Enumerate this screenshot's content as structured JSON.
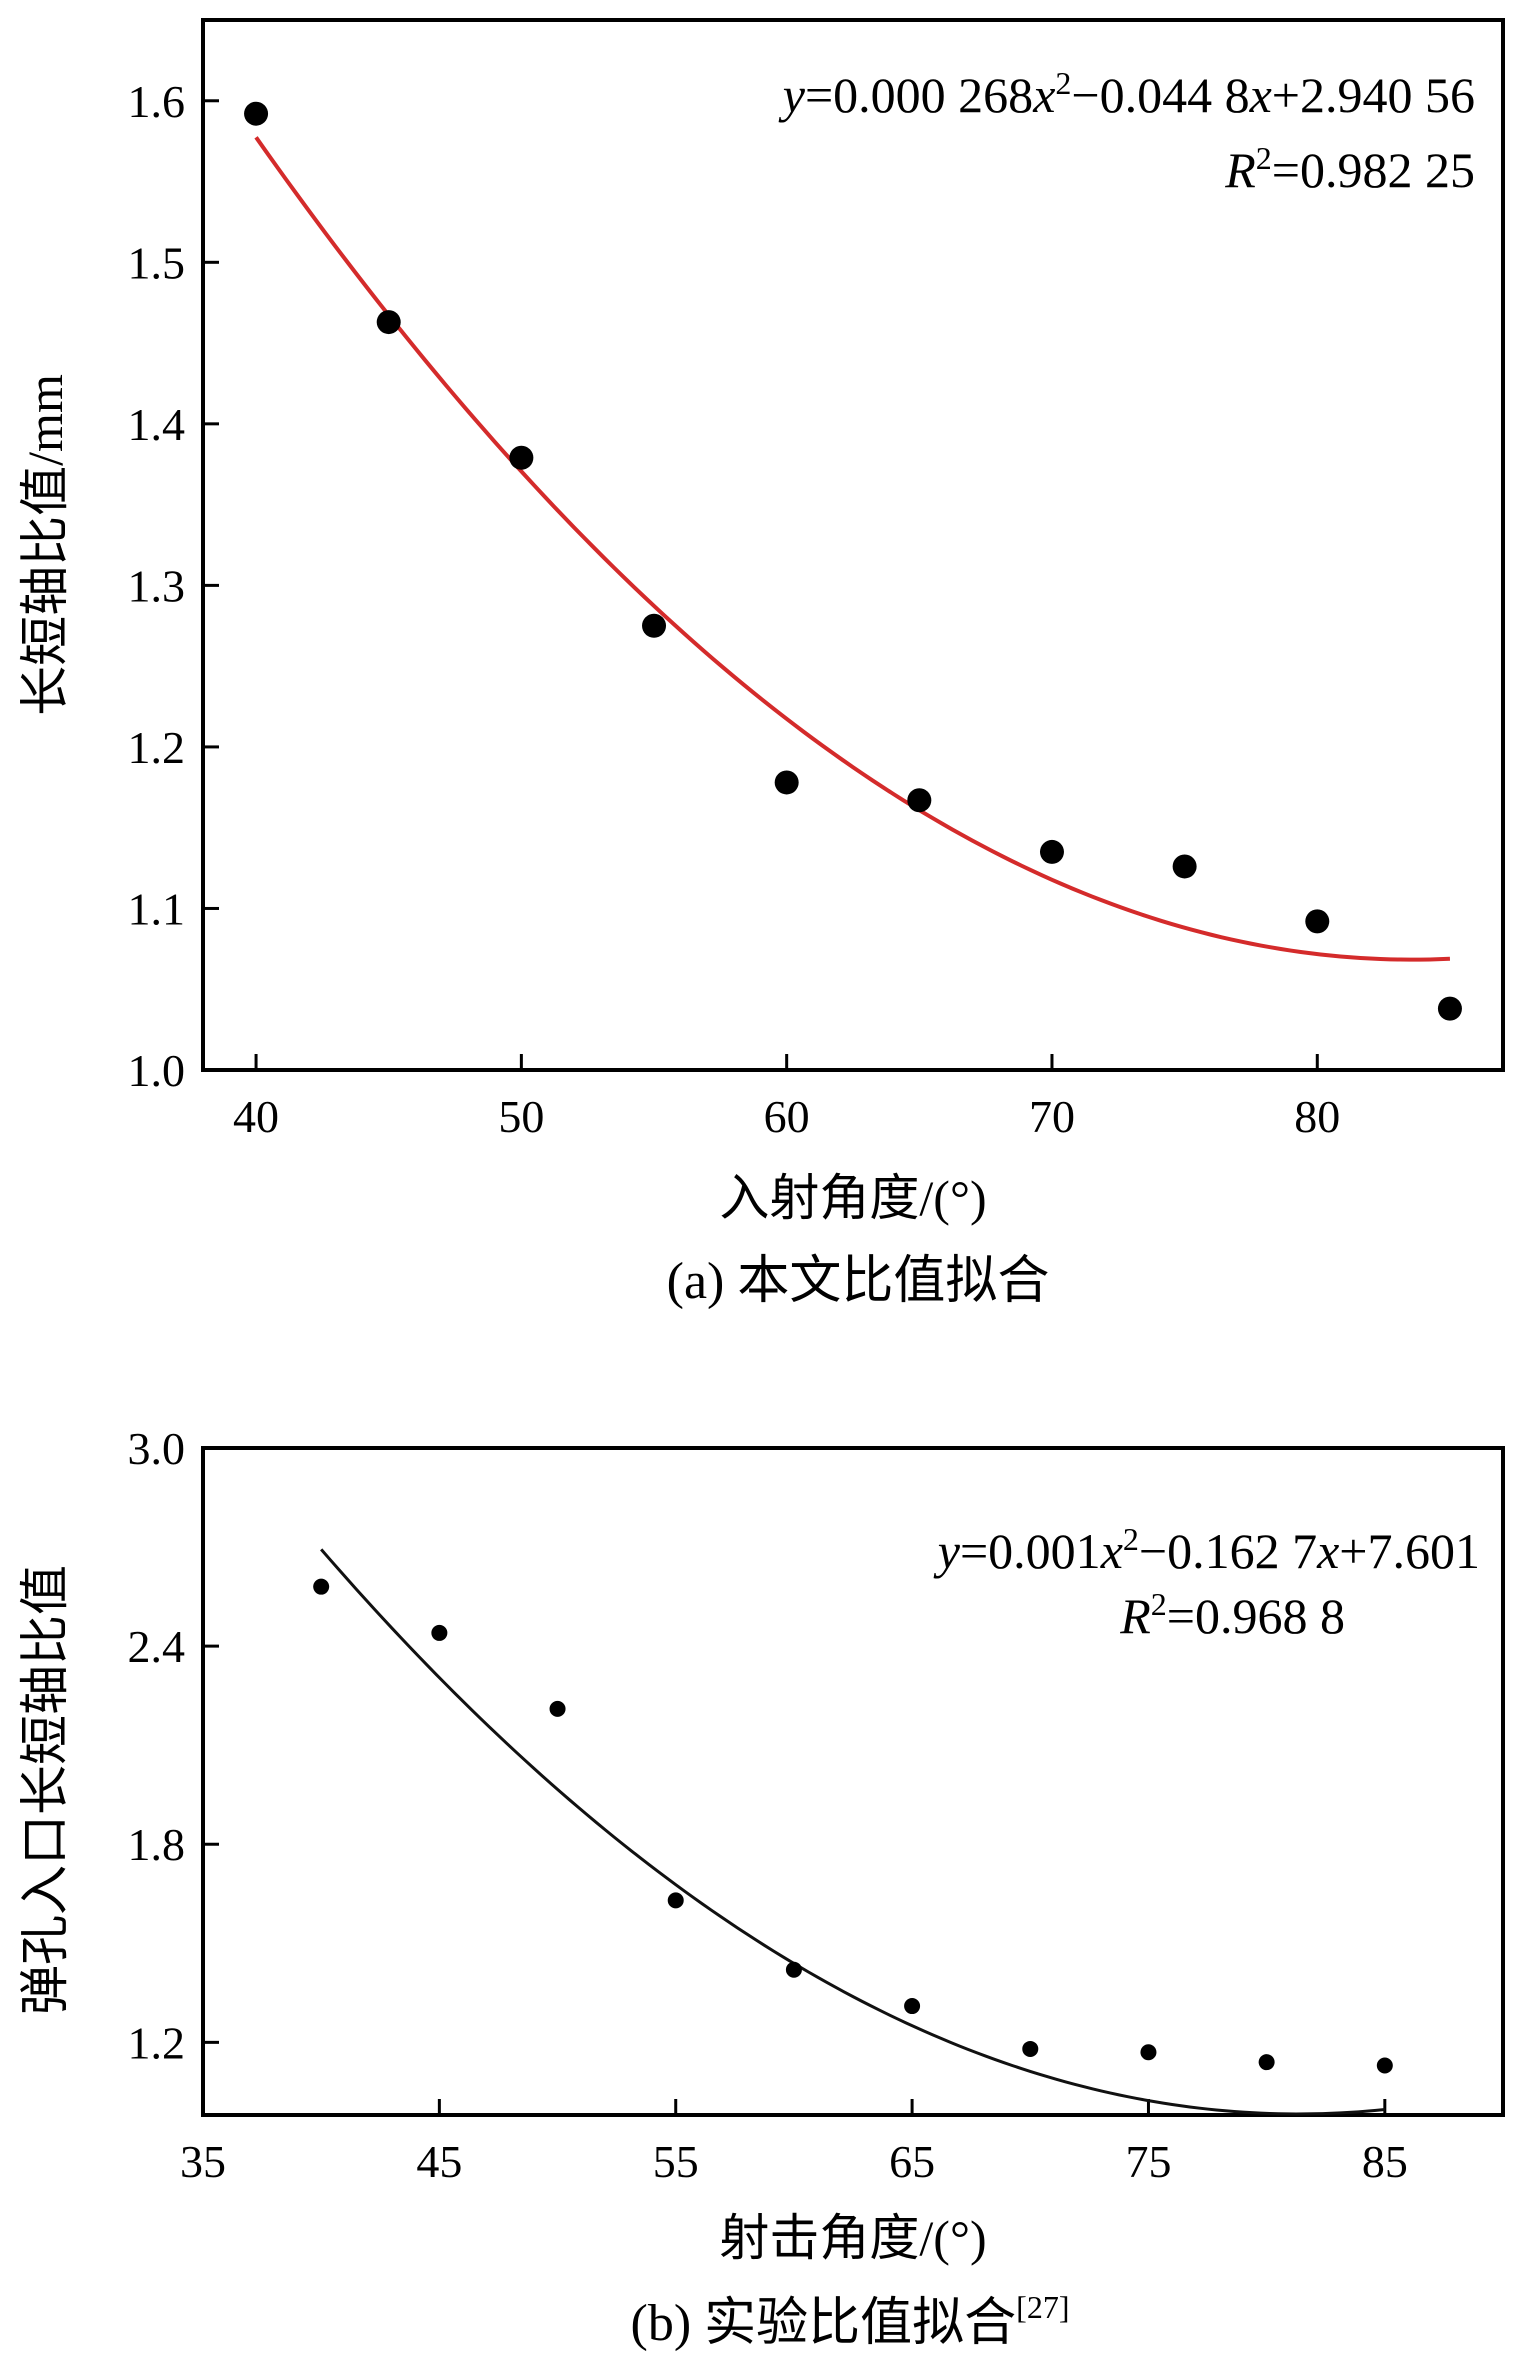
{
  "chart_data": [
    {
      "type": "scatter",
      "title": "",
      "xlabel": "入射角度/(°)",
      "ylabel": "长短轴比值/mm",
      "caption": "(a) 本文比值拟合",
      "xlim": [
        38,
        87
      ],
      "ylim": [
        1.0,
        1.65
      ],
      "xticks": [
        40,
        50,
        60,
        70,
        80
      ],
      "yticks": [
        1.0,
        1.1,
        1.2,
        1.3,
        1.4,
        1.5,
        1.6
      ],
      "ytick_labels": [
        "1.0",
        "1.1",
        "1.2",
        "1.3",
        "1.4",
        "1.5",
        "1.6"
      ],
      "x": [
        40,
        45,
        50,
        55,
        60,
        65,
        70,
        75,
        80,
        85
      ],
      "y": [
        1.592,
        1.463,
        1.379,
        1.275,
        1.178,
        1.167,
        1.135,
        1.126,
        1.092,
        1.038
      ],
      "fit": {
        "a": 0.000268,
        "b": -0.0448,
        "c": 2.94056,
        "x_range": [
          40,
          85
        ],
        "color": "#d42b2b"
      },
      "equation": {
        "y_var": "y",
        "part1": "=0.000 268",
        "x1": "x",
        "exp": "2",
        "part2": "−0.044 8",
        "x2": "x",
        "part3": "+2.940 56"
      },
      "r2": {
        "R": "R",
        "exp": "2",
        "value": "=0.982 25"
      }
    },
    {
      "type": "scatter",
      "title": "",
      "xlabel": "射击角度/(°)",
      "ylabel": "弹孔入口长短轴比值",
      "caption": "(b) 实验比值拟合",
      "caption_ref": "[27]",
      "xlim": [
        35,
        90
      ],
      "ylim": [
        0.98,
        3.0
      ],
      "xticks": [
        35,
        45,
        55,
        65,
        75,
        85
      ],
      "yticks": [
        1.2,
        1.8,
        2.4,
        3.0
      ],
      "ytick_labels": [
        "1.2",
        "1.8",
        "2.4",
        "3.0"
      ],
      "x": [
        40,
        45,
        50,
        55,
        60,
        65,
        70,
        75,
        80,
        85
      ],
      "y": [
        2.58,
        2.44,
        2.21,
        1.63,
        1.42,
        1.31,
        1.18,
        1.17,
        1.14,
        1.13
      ],
      "fit": {
        "a": 0.001,
        "b": -0.1627,
        "c": 7.601,
        "x_range": [
          40,
          85
        ],
        "color": "#111111"
      },
      "equation": {
        "y_var": "y",
        "part1": "=0.001",
        "x1": "x",
        "exp": "2",
        "part2": "−0.162 7",
        "x2": "x",
        "part3": "+7.601"
      },
      "r2": {
        "R": "R",
        "exp": "2",
        "value": "=0.968 8"
      }
    }
  ]
}
